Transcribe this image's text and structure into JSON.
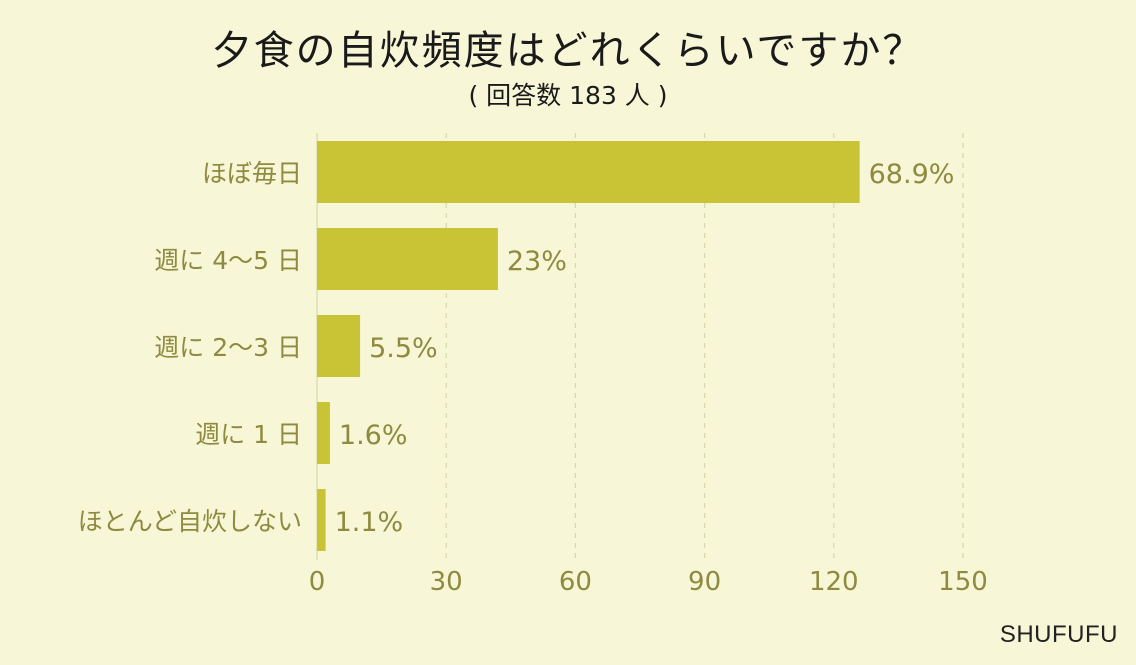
{
  "chart_data": {
    "type": "bar",
    "orientation": "horizontal",
    "title": "夕食の自炊頻度はどれくらいですか？",
    "subtitle": "( 回答数 183 人 )",
    "categories": [
      "ほぼ毎日",
      "週に 4〜5 日",
      "週に 2〜3 日",
      "週に 1 日",
      "ほとんど自炊しない"
    ],
    "values": [
      126,
      42,
      10,
      3,
      2
    ],
    "data_labels": [
      "68.9%",
      "23%",
      "5.5%",
      "1.6%",
      "1.1%"
    ],
    "xlim": [
      0,
      150
    ],
    "xticks": [
      "0",
      "30",
      "60",
      "90",
      "120",
      "150"
    ],
    "xtick_values": [
      0,
      30,
      60,
      90,
      120,
      150
    ],
    "grid": "vertical-dashed",
    "bar_color": "#c9c435",
    "label_color": "#8e8a3f",
    "background_color": "#f7f6d6"
  },
  "brand": "SHUFUFU"
}
